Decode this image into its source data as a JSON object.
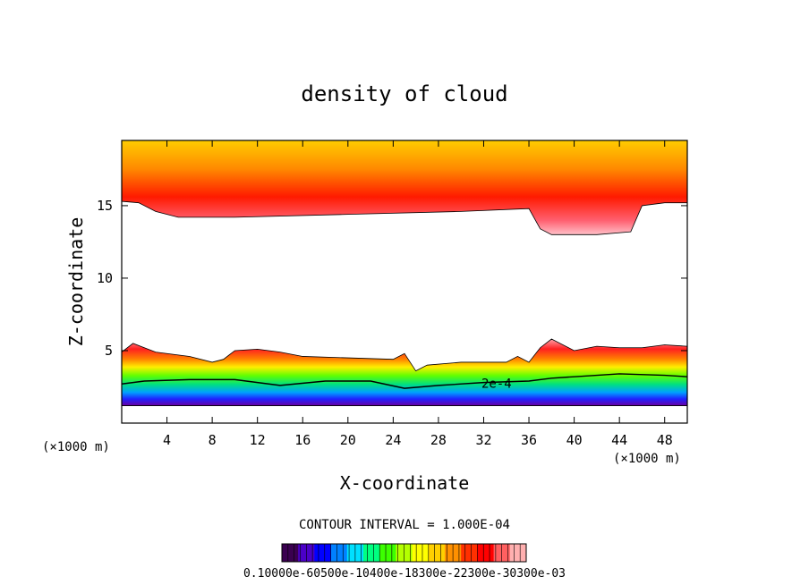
{
  "chart_data": {
    "type": "heatmap",
    "title": "density of cloud",
    "xlabel": "X-coordinate",
    "ylabel": "Z-coordinate",
    "x_unit_left": "(×1000 m)",
    "x_unit_right": "(×1000 m)",
    "xlim": [
      0,
      50
    ],
    "ylim": [
      0,
      19.5
    ],
    "x_ticks": [
      4,
      8,
      12,
      16,
      20,
      24,
      28,
      32,
      36,
      40,
      44,
      48
    ],
    "x_tick_labels": [
      "4",
      "8",
      "12",
      "16",
      "20",
      "24",
      "28",
      "32",
      "36",
      "40",
      "44",
      "48"
    ],
    "y_ticks": [
      5,
      10,
      15
    ],
    "y_tick_labels": [
      "5",
      "10",
      "15"
    ],
    "contour_label": "2e-4",
    "contour_interval_text": "CONTOUR INTERVAL = 1.000E-04",
    "colorbar_labels_text": "0.10000e-60500e-10400e-18300e-22300e-30300e-03",
    "upper_layer": {
      "base_x": [
        0,
        1.5,
        3,
        5,
        10,
        20,
        30,
        36,
        37,
        38,
        42,
        45,
        46,
        48,
        50
      ],
      "base_z": [
        15.3,
        15.2,
        14.6,
        14.2,
        14.2,
        14.4,
        14.6,
        14.8,
        13.4,
        13.0,
        13.0,
        13.2,
        15.0,
        15.2,
        15.2
      ],
      "top_z": 19.5
    },
    "lower_layer": {
      "top_x": [
        0,
        1,
        2,
        3,
        4,
        6,
        8,
        9,
        10,
        12,
        14,
        16,
        20,
        24,
        25,
        26,
        27,
        30,
        34,
        35,
        36,
        37,
        38,
        40,
        42,
        44,
        46,
        48,
        50
      ],
      "top_z": [
        4.9,
        5.5,
        5.2,
        4.9,
        4.8,
        4.6,
        4.2,
        4.4,
        5.0,
        5.1,
        4.9,
        4.6,
        4.5,
        4.4,
        4.8,
        3.6,
        4.0,
        4.2,
        4.2,
        4.6,
        4.2,
        5.2,
        5.8,
        5.0,
        5.3,
        5.2,
        5.2,
        5.4,
        5.3
      ],
      "bottom_z": 1.2
    },
    "contour_2e4": {
      "x": [
        0,
        2,
        6,
        10,
        14,
        18,
        22,
        25,
        28,
        32,
        36,
        38,
        40,
        44,
        48,
        50
      ],
      "z": [
        2.7,
        2.9,
        3.0,
        3.0,
        2.6,
        2.9,
        2.9,
        2.4,
        2.6,
        2.8,
        2.9,
        3.1,
        3.2,
        3.4,
        3.3,
        3.2
      ]
    },
    "colorbar_colors": [
      "#3a0050",
      "#4b00c8",
      "#0000ff",
      "#0080ff",
      "#00e0ff",
      "#00ff80",
      "#3cff00",
      "#b4ff00",
      "#ffff00",
      "#ffd000",
      "#ff9000",
      "#ff3000",
      "#ff0000",
      "#ff6060",
      "#ffb0b0"
    ]
  }
}
